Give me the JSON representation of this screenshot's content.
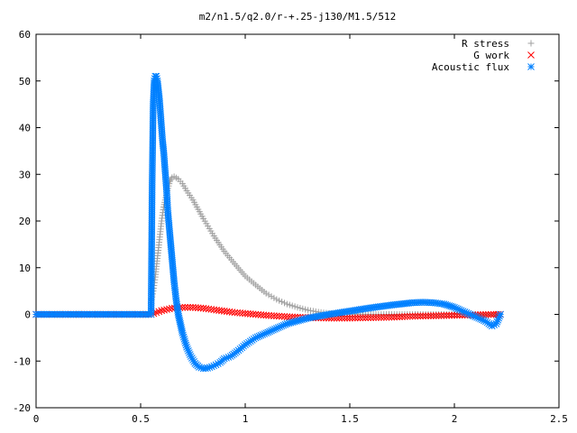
{
  "chart_data": {
    "type": "scatter",
    "title": "m2/n1.5/q2.0/r-+.25-j130/M1.5/512",
    "xlabel": "",
    "ylabel": "",
    "xlim": [
      0,
      2.5
    ],
    "ylim": [
      -20,
      60
    ],
    "x_ticks": [
      0,
      0.5,
      1,
      1.5,
      2,
      2.5
    ],
    "x_tick_labels": [
      "0",
      "0.5",
      "1",
      "1.5",
      "2",
      "2.5"
    ],
    "y_ticks": [
      -20,
      -10,
      0,
      10,
      20,
      30,
      40,
      50,
      60
    ],
    "y_tick_labels": [
      "-20",
      "-10",
      "0",
      "10",
      "20",
      "30",
      "40",
      "50",
      "60"
    ],
    "grid": false,
    "legend_position": "top-right",
    "series": [
      {
        "name": "R stress",
        "marker": "plus",
        "color": "#a0a0a0",
        "x": [
          0.55,
          0.56,
          0.57,
          0.58,
          0.59,
          0.6,
          0.61,
          0.62,
          0.63,
          0.64,
          0.65,
          0.66,
          0.68,
          0.7,
          0.72,
          0.75,
          0.8,
          0.85,
          0.9,
          0.95,
          1.0,
          1.05,
          1.1,
          1.15,
          1.2,
          1.25,
          1.3,
          1.35,
          1.4,
          1.5,
          1.6,
          1.7,
          1.8,
          1.9,
          2.0,
          2.1,
          2.2,
          2.22
        ],
        "y": [
          2.5,
          5,
          8,
          12,
          16,
          20,
          23,
          25,
          27,
          28.5,
          29.3,
          29.5,
          29,
          28,
          26.5,
          24.5,
          20.5,
          16.8,
          13.5,
          10.8,
          8.2,
          6.3,
          4.5,
          3.2,
          2.2,
          1.5,
          0.9,
          0.5,
          0.2,
          0.05,
          0,
          0,
          0,
          0,
          0,
          0,
          0,
          0
        ]
      },
      {
        "name": "G work",
        "marker": "cross",
        "color": "#ff0000",
        "x": [
          0.0,
          0.55,
          0.6,
          0.65,
          0.7,
          0.75,
          0.8,
          0.85,
          0.9,
          0.95,
          1.0,
          1.05,
          1.1,
          1.2,
          1.3,
          1.4,
          1.5,
          1.6,
          1.7,
          1.8,
          1.9,
          2.0,
          2.1,
          2.2,
          2.22
        ],
        "y": [
          0,
          0,
          0.8,
          1.3,
          1.5,
          1.5,
          1.3,
          1.0,
          0.7,
          0.4,
          0.2,
          0,
          -0.2,
          -0.5,
          -0.7,
          -0.8,
          -0.8,
          -0.7,
          -0.6,
          -0.4,
          -0.3,
          -0.2,
          -0.1,
          0,
          0
        ]
      },
      {
        "name": "Acoustic flux",
        "marker": "star",
        "color": "#0080ff",
        "x": [
          0.0,
          0.1,
          0.2,
          0.3,
          0.4,
          0.5,
          0.55,
          0.555,
          0.56,
          0.565,
          0.57,
          0.575,
          0.58,
          0.585,
          0.59,
          0.595,
          0.6,
          0.605,
          0.61,
          0.615,
          0.62,
          0.625,
          0.63,
          0.64,
          0.65,
          0.66,
          0.67,
          0.68,
          0.7,
          0.72,
          0.74,
          0.76,
          0.78,
          0.8,
          0.82,
          0.84,
          0.86,
          0.88,
          0.9,
          0.93,
          0.96,
          1.0,
          1.05,
          1.1,
          1.15,
          1.2,
          1.3,
          1.4,
          1.5,
          1.6,
          1.7,
          1.8,
          1.85,
          1.9,
          1.95,
          2.0,
          2.05,
          2.1,
          2.15,
          2.18,
          2.2,
          2.22
        ],
        "y": [
          0,
          0,
          0,
          0,
          0,
          0,
          0,
          28,
          45,
          50,
          51,
          51,
          50,
          48,
          46,
          43,
          40,
          37,
          35,
          32,
          29,
          26,
          22,
          17,
          12,
          7,
          3,
          0,
          -4,
          -7,
          -9,
          -10.5,
          -11.3,
          -11.6,
          -11.5,
          -11.2,
          -10.8,
          -10.3,
          -9.5,
          -9,
          -8,
          -6.5,
          -5,
          -4,
          -3,
          -2,
          -0.8,
          0,
          0.7,
          1.4,
          2,
          2.5,
          2.6,
          2.5,
          2.2,
          1.5,
          0.5,
          -0.5,
          -1.5,
          -2.5,
          -2,
          0
        ]
      }
    ]
  }
}
